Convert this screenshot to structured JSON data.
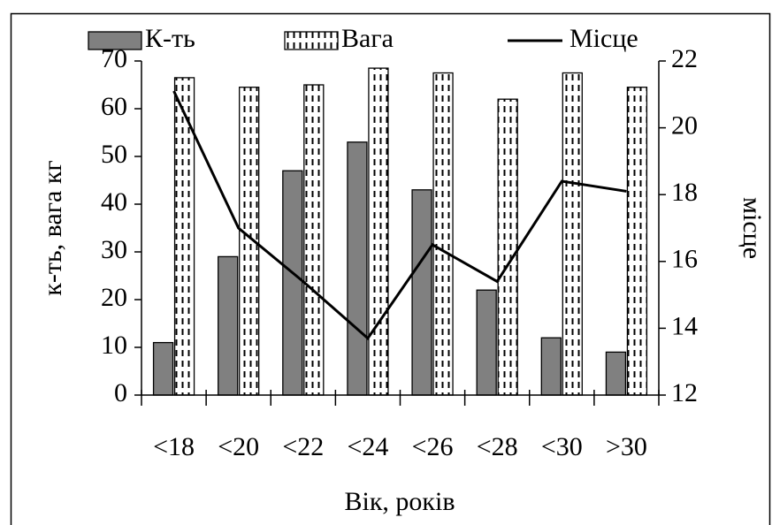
{
  "chart_data": {
    "type": "bar",
    "categories": [
      "<18",
      "<20",
      "<22",
      "<24",
      "<26",
      "<28",
      "<30",
      ">30"
    ],
    "series": [
      {
        "name": "К-ть",
        "color": "#808080",
        "values": [
          11,
          29,
          47,
          53,
          43,
          22,
          12,
          9
        ]
      },
      {
        "name": "Вага",
        "color": "#ffffff",
        "values": [
          66.5,
          64.5,
          65,
          68.5,
          67.5,
          62,
          67.5,
          64.5
        ]
      },
      {
        "name": "Місце",
        "color": "#000000",
        "type": "line",
        "axis": "y2",
        "values": [
          21.1,
          17.0,
          15.4,
          13.7,
          16.5,
          15.4,
          18.4,
          18.1
        ]
      }
    ],
    "ylabel": "к-ть, вага кг",
    "y2label": "місце",
    "xlabel": "Вік, років",
    "ylim": [
      0,
      70
    ],
    "yticks": [
      0,
      10,
      20,
      30,
      40,
      50,
      60,
      70
    ],
    "y2lim": [
      12,
      22
    ],
    "y2ticks": [
      12,
      14,
      16,
      18,
      20,
      22
    ],
    "legend": "top",
    "grid": false
  }
}
